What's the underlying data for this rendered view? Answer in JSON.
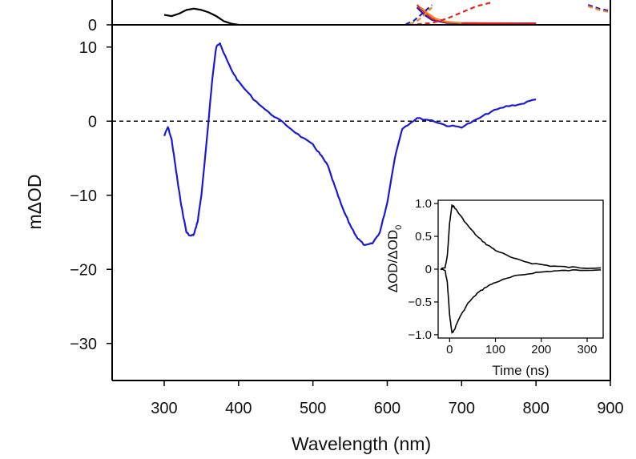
{
  "chart_data": [
    {
      "type": "line",
      "panel": "main",
      "xlabel": "Wavelength (nm)",
      "ylabel": "mΔOD",
      "xlim": [
        230,
        900
      ],
      "ylim": [
        -35,
        13
      ],
      "x_ticks": [
        300,
        400,
        500,
        600,
        700,
        800,
        900
      ],
      "x_tick_labels": [
        "300",
        "400",
        "500",
        "600",
        "700",
        "800",
        "900"
      ],
      "y_ticks": [
        10,
        0,
        -10,
        -20,
        -30
      ],
      "y_tick_labels": [
        "10",
        "0",
        "−10",
        "−20",
        "−30"
      ],
      "zero_line": {
        "y": 0,
        "style": "dashed",
        "color": "#000000"
      },
      "series": [
        {
          "name": "transient absorption spectrum",
          "color": "#1a1ad6",
          "x": [
            300,
            305,
            310,
            315,
            320,
            325,
            330,
            335,
            340,
            345,
            350,
            355,
            360,
            365,
            370,
            375,
            380,
            390,
            400,
            420,
            440,
            460,
            480,
            500,
            510,
            520,
            530,
            540,
            550,
            560,
            570,
            580,
            590,
            600,
            610,
            620,
            640,
            660,
            680,
            700,
            720,
            740,
            760,
            780,
            800
          ],
          "y": [
            -2.0,
            -0.8,
            -2.5,
            -6.0,
            -9.5,
            -12.5,
            -15.0,
            -15.5,
            -15.3,
            -13.5,
            -10.0,
            -5.0,
            0.5,
            6.0,
            10.0,
            10.6,
            9.2,
            7.0,
            5.3,
            3.0,
            1.2,
            -0.2,
            -1.8,
            -3.2,
            -4.5,
            -6.0,
            -9.0,
            -11.8,
            -14.0,
            -15.8,
            -16.8,
            -16.5,
            -15.0,
            -11.0,
            -5.0,
            -1.0,
            0.4,
            0.1,
            -0.6,
            -0.8,
            0.2,
            1.3,
            2.0,
            2.3,
            3.0
          ]
        }
      ]
    },
    {
      "type": "line",
      "panel": "top-cropped",
      "ylim": [
        0,
        null
      ],
      "y_ticks": [
        0
      ],
      "y_tick_labels": [
        "0"
      ],
      "series": [
        {
          "name": "black solid",
          "color": "#000000",
          "style": "solid",
          "x": [
            300,
            310,
            320,
            330,
            340,
            350,
            360,
            370,
            380,
            390,
            400
          ],
          "y": [
            8,
            7,
            9,
            12,
            13,
            12,
            10,
            7,
            3,
            1,
            0
          ]
        },
        {
          "name": "blue solid",
          "color": "#1a1ad6",
          "style": "solid",
          "x": [
            640,
            650,
            660,
            680,
            700,
            740,
            780,
            800
          ],
          "y": [
            14,
            8,
            4,
            1.5,
            1.3,
            1.3,
            1.2,
            1.2
          ]
        },
        {
          "name": "red solid",
          "color": "#e8231c",
          "style": "solid",
          "x": [
            640,
            650,
            660,
            680,
            700,
            740,
            780,
            800
          ],
          "y": [
            16,
            10,
            5,
            2,
            1.5,
            1.2,
            1.1,
            1.0
          ]
        },
        {
          "name": "orange solid",
          "color": "#f08a1a",
          "style": "solid",
          "x": [
            645,
            655,
            665,
            680,
            700
          ],
          "y": [
            14,
            9,
            5,
            2.5,
            1.5
          ]
        },
        {
          "name": "blue dashed",
          "color": "#1a1ad6",
          "style": "dashed",
          "x": [
            625,
            635,
            645,
            660
          ],
          "y": [
            0.5,
            3,
            8,
            16
          ]
        },
        {
          "name": "orange dashed",
          "color": "#f08a1a",
          "style": "dashed",
          "x": [
            630,
            640,
            650,
            660
          ],
          "y": [
            0.5,
            3,
            8,
            14
          ]
        },
        {
          "name": "red dashed",
          "color": "#e8231c",
          "style": "dashed",
          "x": [
            640,
            660,
            680,
            700,
            720,
            740
          ],
          "y": [
            0.5,
            1.5,
            5,
            10,
            15,
            18
          ]
        },
        {
          "name": "blue dashed right",
          "color": "#1a1ad6",
          "style": "dashed",
          "x": [
            870,
            885,
            900
          ],
          "y": [
            16,
            13,
            11
          ]
        },
        {
          "name": "orange dashed right",
          "color": "#f08a1a",
          "style": "dashed",
          "x": [
            870,
            885,
            900
          ],
          "y": [
            15,
            12,
            10
          ]
        }
      ]
    },
    {
      "type": "line",
      "panel": "inset",
      "xlabel": "Time (ns)",
      "ylabel": "ΔOD/ΔOD",
      "ylabel_subscript": "0",
      "xlim": [
        -25,
        335
      ],
      "ylim": [
        -1.05,
        1.05
      ],
      "x_ticks": [
        0,
        100,
        200,
        300
      ],
      "x_tick_labels": [
        "0",
        "100",
        "200",
        "300"
      ],
      "y_ticks": [
        1.0,
        0.5,
        0,
        -0.5,
        -1.0
      ],
      "y_tick_labels": [
        "1.0",
        "0.5",
        "0",
        "−0.5",
        "−1.0"
      ],
      "series": [
        {
          "name": "positive decay",
          "color": "#000000",
          "x": [
            -20,
            -10,
            -5,
            0,
            5,
            10,
            20,
            40,
            60,
            80,
            100,
            140,
            180,
            220,
            260,
            300,
            330
          ],
          "y": [
            0,
            0.02,
            0.2,
            0.7,
            0.97,
            0.95,
            0.85,
            0.66,
            0.5,
            0.38,
            0.29,
            0.16,
            0.09,
            0.05,
            0.03,
            0.02,
            0.02
          ]
        },
        {
          "name": "negative decay",
          "color": "#000000",
          "x": [
            -20,
            -10,
            -5,
            0,
            5,
            10,
            20,
            40,
            60,
            80,
            100,
            140,
            180,
            220,
            260,
            300,
            330
          ],
          "y": [
            0,
            -0.02,
            -0.2,
            -0.7,
            -0.97,
            -0.93,
            -0.76,
            -0.52,
            -0.37,
            -0.27,
            -0.2,
            -0.11,
            -0.06,
            -0.03,
            -0.02,
            -0.01,
            -0.01
          ]
        }
      ]
    }
  ]
}
